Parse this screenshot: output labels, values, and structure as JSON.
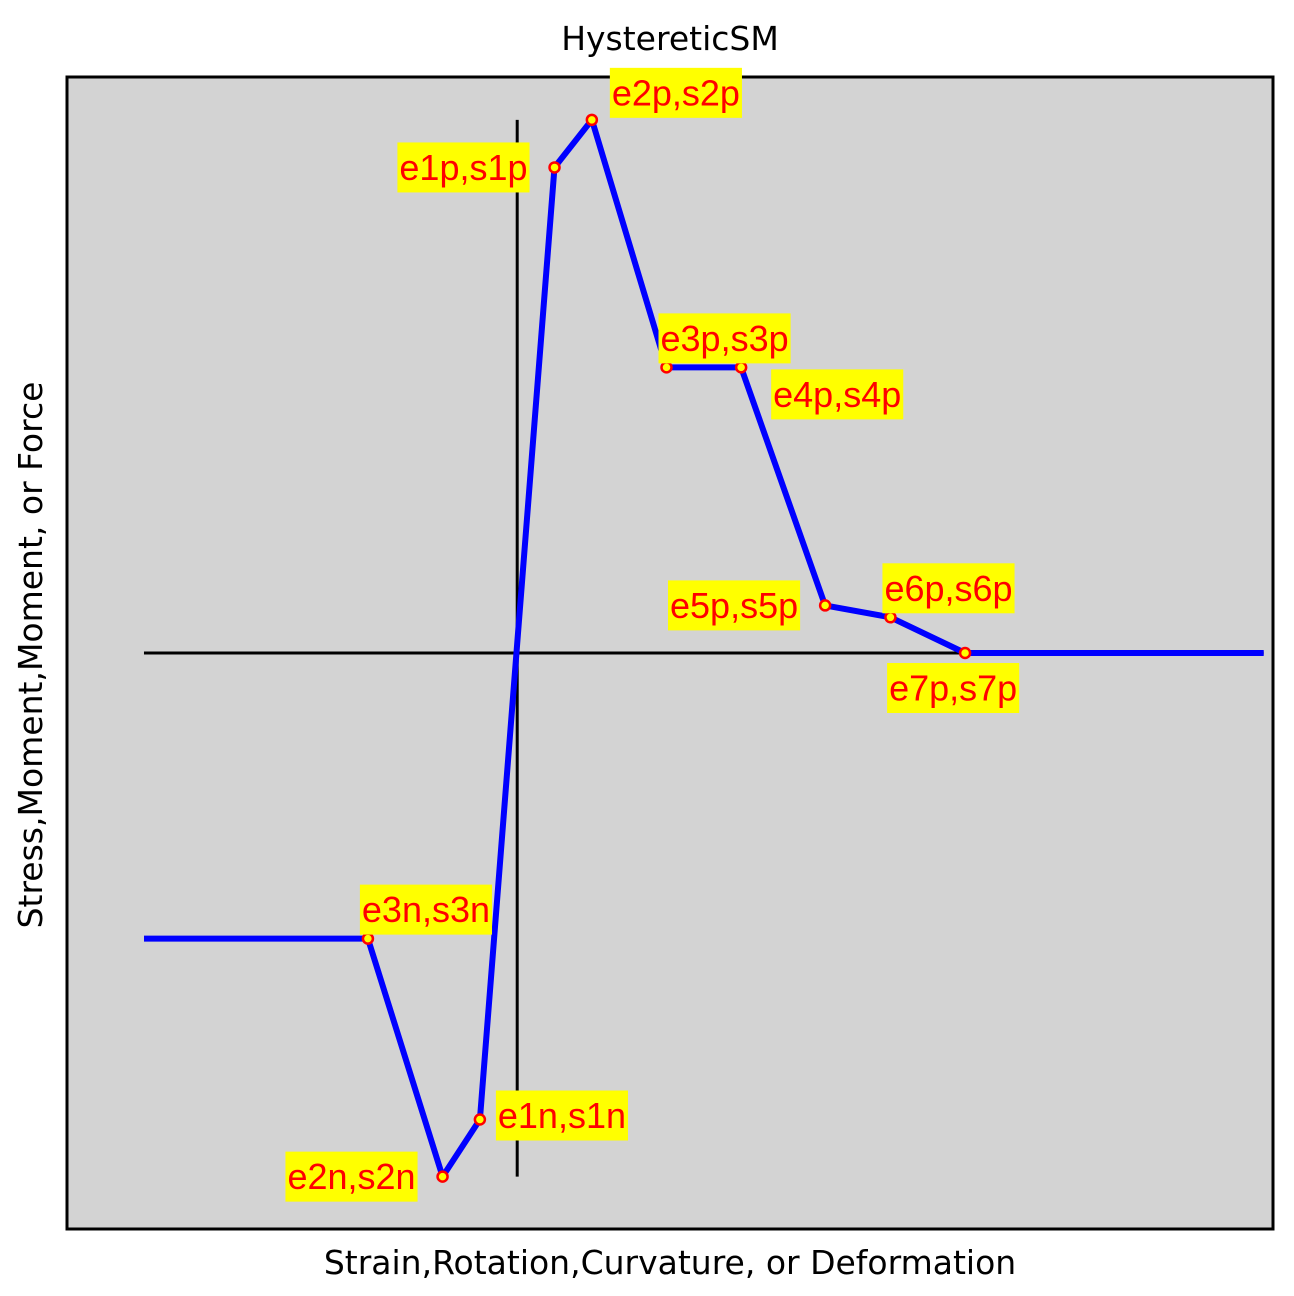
{
  "chart_data": {
    "type": "line",
    "title": "HystereticSM",
    "xlabel": "Strain,Rotation,Curvature, or Deformation",
    "ylabel": "Stress,Moment,Moment, or Force",
    "xlim": [
      -9.65,
      16.2
    ],
    "ylim": [
      -12.1,
      12.1
    ],
    "x_ticks_shown": false,
    "y_ticks_shown": false,
    "grid": false,
    "legend": "none",
    "colors": {
      "background": "#d3d3d3",
      "curve": "#0000ff",
      "axes_lines": "#000000",
      "marker_fill": "#ffff00",
      "marker_edge": "#ff0000",
      "label_text": "#ff0000",
      "label_box": "#ffff00"
    },
    "backbone": [
      {
        "x": -8.0,
        "y": -6.0
      },
      {
        "x": -3.2,
        "y": -6.0
      },
      {
        "x": -1.6,
        "y": -11.0
      },
      {
        "x": -0.8,
        "y": -9.8
      },
      {
        "x": 0.8,
        "y": 10.2
      },
      {
        "x": 1.6,
        "y": 11.2
      },
      {
        "x": 3.2,
        "y": 6.0
      },
      {
        "x": 4.8,
        "y": 6.0
      },
      {
        "x": 6.6,
        "y": 1.0
      },
      {
        "x": 8.0,
        "y": 0.75
      },
      {
        "x": 9.6,
        "y": 0.0
      },
      {
        "x": 16.0,
        "y": 0.0
      }
    ],
    "points": [
      {
        "label": "e1p,s1p",
        "x": 0.8,
        "y": 10.2,
        "label_side": "left"
      },
      {
        "label": "e2p,s2p",
        "x": 1.6,
        "y": 11.2,
        "label_side": "upper-right"
      },
      {
        "label": "e3p,s3p",
        "x": 3.2,
        "y": 6.0,
        "label_side": "above"
      },
      {
        "label": "e4p,s4p",
        "x": 4.8,
        "y": 6.0,
        "label_side": "lower-right"
      },
      {
        "label": "e5p,s5p",
        "x": 6.6,
        "y": 1.0,
        "label_side": "left"
      },
      {
        "label": "e6p,s6p",
        "x": 8.0,
        "y": 0.75,
        "label_side": "above"
      },
      {
        "label": "e7p,s7p",
        "x": 9.6,
        "y": 0.0,
        "label_side": "below"
      },
      {
        "label": "e1n,s1n",
        "x": -0.8,
        "y": -9.8,
        "label_side": "right"
      },
      {
        "label": "e2n,s2n",
        "x": -1.6,
        "y": -11.0,
        "label_side": "left"
      },
      {
        "label": "e3n,s3n",
        "x": -3.2,
        "y": -6.0,
        "label_side": "above"
      }
    ],
    "axes_lines": {
      "horizontal": {
        "y": 0,
        "x_from": -8.0,
        "x_to": 16.0
      },
      "vertical": {
        "x": 0,
        "y_from": -11.0,
        "y_to": 11.2
      }
    }
  }
}
